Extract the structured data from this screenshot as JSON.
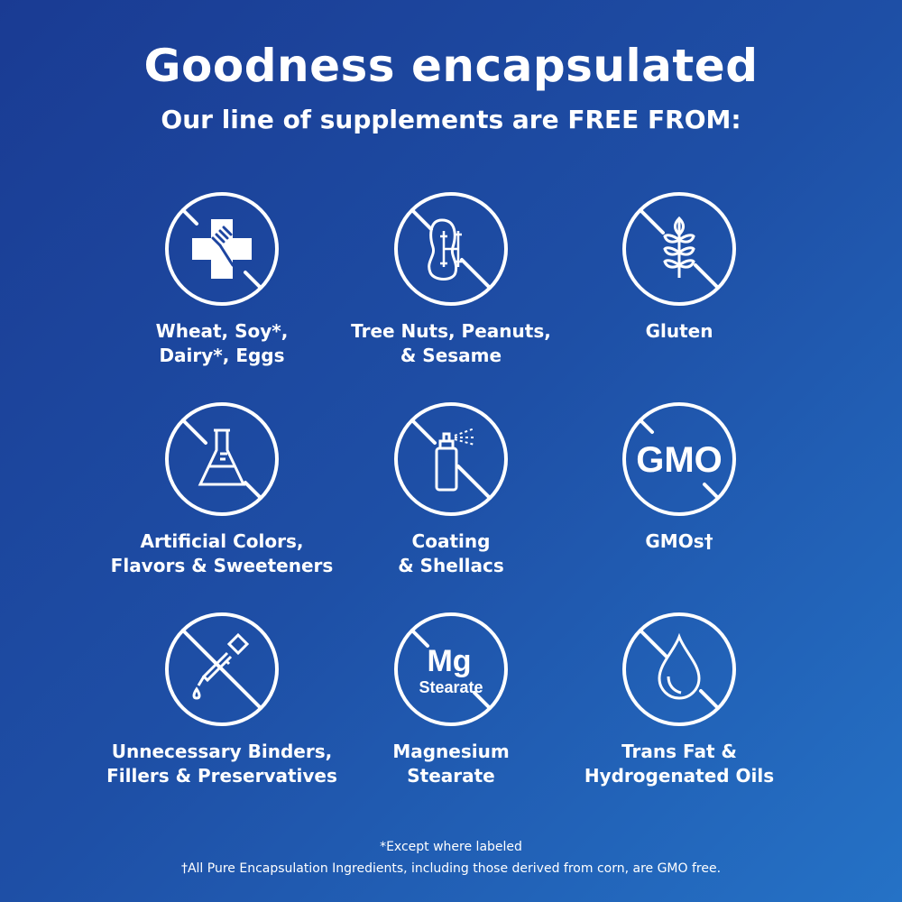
{
  "header": {
    "title": "Goodness encapsulated",
    "subtitle": "Our line of supplements are FREE FROM:"
  },
  "items": [
    {
      "icon": "medical-cross-fork-icon",
      "lines": [
        "Wheat, Soy*,",
        "Dairy*, Eggs"
      ]
    },
    {
      "icon": "peanut-icon",
      "lines": [
        "Tree Nuts, Peanuts,",
        "& Sesame"
      ]
    },
    {
      "icon": "wheat-icon",
      "lines": [
        "Gluten"
      ]
    },
    {
      "icon": "flask-icon",
      "lines": [
        "Artificial Colors,",
        "Flavors & Sweeteners"
      ]
    },
    {
      "icon": "spray-can-icon",
      "lines": [
        "Coating",
        "& Shellacs"
      ]
    },
    {
      "icon": "gmo-icon",
      "icon_text": "GMO",
      "lines": [
        "GMOs†"
      ]
    },
    {
      "icon": "dropper-icon",
      "lines": [
        "Unnecessary Binders,",
        "Fillers & Preservatives"
      ]
    },
    {
      "icon": "mg-stearate-icon",
      "icon_text": "Mg",
      "icon_subtext": "Stearate",
      "lines": [
        "Magnesium",
        "Stearate"
      ]
    },
    {
      "icon": "oil-drop-icon",
      "lines": [
        "Trans Fat &",
        "Hydrogenated Oils"
      ]
    }
  ],
  "footnotes": [
    "*Except where labeled",
    "†All Pure Encapsulation Ingredients, including those derived from corn, are GMO free."
  ],
  "colors": {
    "background_start": "#1a3b93",
    "background_end": "#2572c6",
    "foreground": "#ffffff"
  }
}
